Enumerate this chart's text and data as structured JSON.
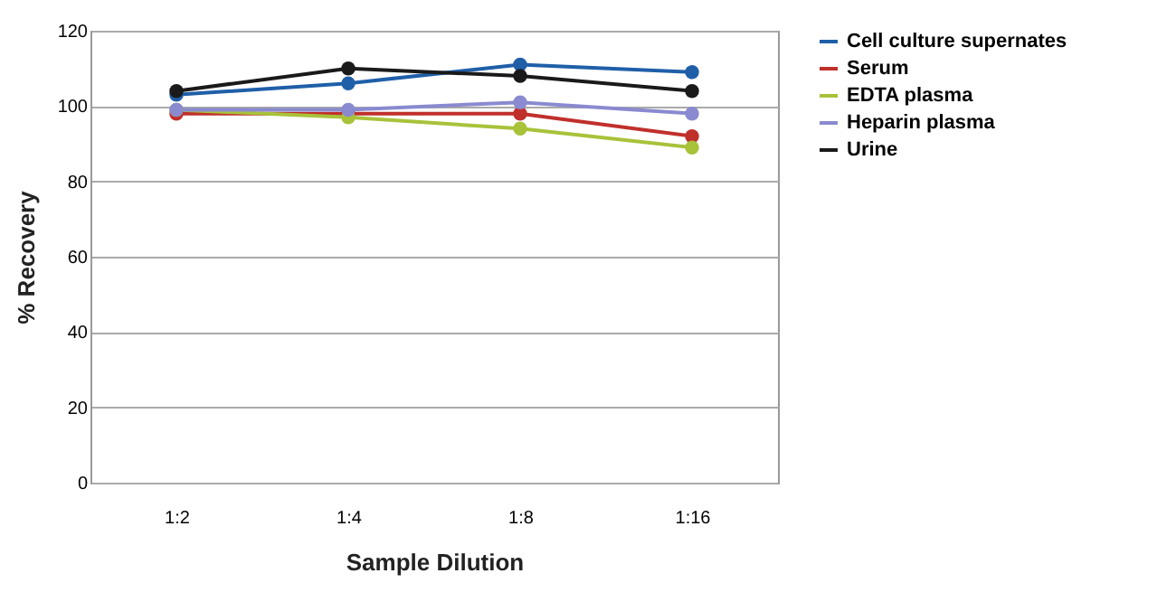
{
  "chart_data": {
    "type": "line",
    "xlabel": "Sample Dilution",
    "ylabel": "% Recovery",
    "categories": [
      "1:2",
      "1:4",
      "1:8",
      "1:16"
    ],
    "series": [
      {
        "name": "Cell culture supernates",
        "color": "#1f5fa8",
        "values": [
          103,
          106,
          111,
          109
        ]
      },
      {
        "name": "Serum",
        "color": "#c0302b",
        "values": [
          98,
          98,
          98,
          92
        ]
      },
      {
        "name": "EDTA plasma",
        "color": "#a8c23a",
        "values": [
          99,
          97,
          94,
          89
        ]
      },
      {
        "name": "Heparin plasma",
        "color": "#8a8ad0",
        "values": [
          99,
          99,
          101,
          98
        ]
      },
      {
        "name": "Urine",
        "color": "#1a1a1a",
        "values": [
          104,
          110,
          108,
          104
        ]
      }
    ],
    "ylim": [
      0,
      120
    ],
    "yticks": [
      0,
      20,
      40,
      60,
      80,
      100,
      120
    ],
    "grid": "y",
    "legend": "right",
    "marker": "circle",
    "line_style": "solid"
  }
}
